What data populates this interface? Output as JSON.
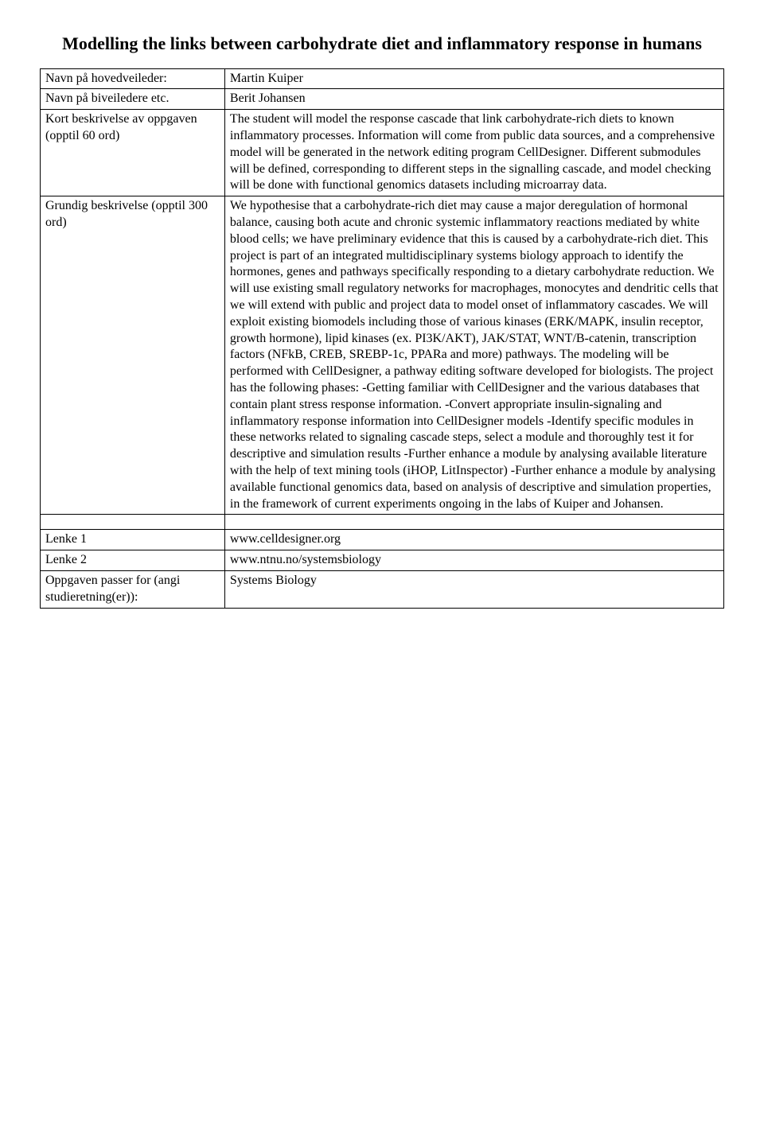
{
  "title": "Modelling the links between carbohydrate diet and inflammatory response in humans",
  "rows": {
    "r1": {
      "label": "Navn på hovedveileder:",
      "value": "Martin Kuiper"
    },
    "r2": {
      "label": "Navn på biveiledere etc.",
      "value": "Berit Johansen"
    },
    "r3": {
      "label": "Kort beskrivelse av oppgaven  (opptil 60 ord)",
      "value": "The student will model the response cascade that link carbohydrate-rich diets to known inflammatory processes. Information will come from public data sources, and a comprehensive model will be generated in the network editing program CellDesigner. Different submodules will be defined, corresponding to different steps in the signalling cascade, and model checking will be done with functional genomics datasets including microarray data."
    },
    "r4": {
      "label": "Grundig beskrivelse (opptil 300 ord)",
      "value": "We hypothesise that a carbohydrate-rich diet may cause a major deregulation of hormonal balance, causing both acute and chronic systemic inflammatory reactions mediated by white blood cells; we have preliminary evidence that this is caused by a carbohydrate-rich diet. This project is part of an integrated multidisciplinary systems biology approach to identify the hormones, genes and pathways specifically responding to a dietary carbohydrate reduction. We will use existing small regulatory networks for macrophages, monocytes and dendritic cells that we will extend with public and project data to model onset of inflammatory cascades. We will exploit existing biomodels including those of various kinases (ERK/MAPK, insulin receptor, growth hormone), lipid kinases (ex. PI3K/AKT), JAK/STAT, WNT/B-catenin, transcription factors (NFkB, CREB, SREBP-1c, PPARa and more) pathways. The modeling will be performed with CellDesigner, a pathway editing software developed for biologists. The project has the following phases:\n-Getting familiar with CellDesigner and the various databases that contain plant stress response information.\n-Convert appropriate insulin-signaling and inflammatory response information into CellDesigner models\n-Identify specific modules in these networks related to signaling cascade steps, select a module and thoroughly test it for descriptive and simulation results\n-Further enhance a module by analysing available literature with the help of text mining tools (iHOP, LitInspector)\n-Further enhance a module by analysing available functional genomics data, based on analysis of descriptive and simulation properties, in the framework of current experiments ongoing in the labs of Kuiper and Johansen."
    },
    "r5": {
      "label": "Lenke 1",
      "value": "www.celldesigner.org"
    },
    "r6": {
      "label": "Lenke 2",
      "value": "www.ntnu.no/systemsbiology"
    },
    "r7": {
      "label": "Oppgaven passer for (angi studieretning(er)):",
      "value": "Systems Biology"
    }
  }
}
